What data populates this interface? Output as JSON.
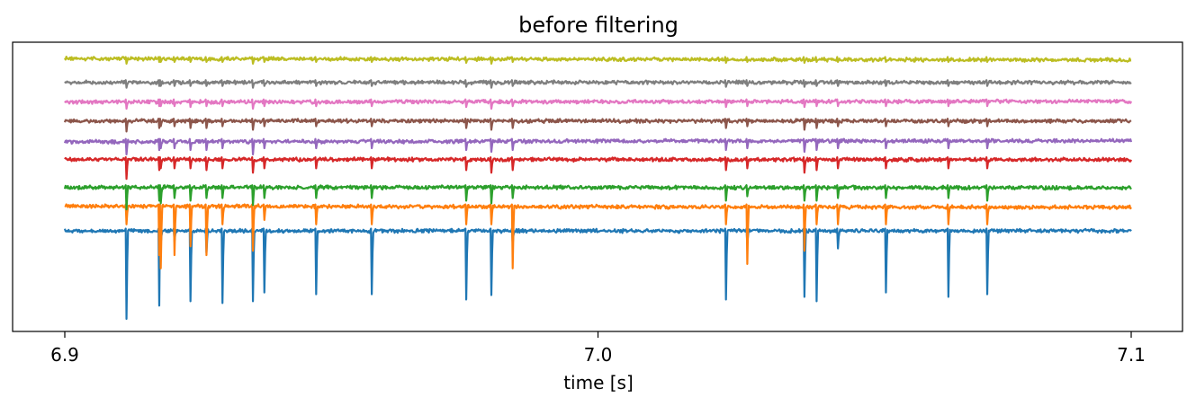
{
  "chart_data": {
    "type": "line",
    "title": "before filtering",
    "xlabel": "time [s]",
    "ylabel": "",
    "xlim": [
      6.9,
      7.1
    ],
    "xticks": [
      6.9,
      7.0,
      7.1
    ],
    "xtick_labels": [
      "6.9",
      "7.0",
      "7.1"
    ],
    "yticks_shown": false,
    "grid": false,
    "legend": "none",
    "spike_times": [
      6.9115,
      6.9175,
      6.9178,
      6.9205,
      6.9235,
      6.9265,
      6.9295,
      6.9352,
      6.9373,
      6.947,
      6.9575,
      6.9752,
      6.9798,
      6.9838,
      7.0238,
      7.0278,
      7.0385,
      7.0408,
      7.0448,
      7.0538,
      7.0655,
      7.0728
    ],
    "series": [
      {
        "color": "#1f77b4",
        "offset": 0.0,
        "spike_amplitudes": [
          -1.0,
          -0.85,
          -0.15,
          -0.12,
          -0.8,
          -0.25,
          -0.82,
          -0.8,
          -0.7,
          -0.72,
          -0.72,
          -0.78,
          -0.73,
          -0.15,
          -0.78,
          -0.15,
          -0.75,
          -0.8,
          -0.2,
          -0.7,
          -0.75,
          -0.72
        ]
      },
      {
        "color": "#ff7f0e",
        "offset": 0.25,
        "spike_amplitudes": [
          -0.2,
          -0.55,
          -0.7,
          -0.55,
          -0.45,
          -0.55,
          -0.2,
          -0.5,
          -0.15,
          -0.2,
          -0.2,
          -0.2,
          -0.2,
          -0.7,
          -0.2,
          -0.65,
          -0.5,
          -0.2,
          -0.2,
          -0.2,
          -0.2,
          -0.2
        ]
      },
      {
        "color": "#2ca02c",
        "offset": 0.45,
        "spike_amplitudes": [
          -0.25,
          -0.15,
          -0.18,
          -0.12,
          -0.15,
          -0.12,
          -0.12,
          -0.2,
          -0.12,
          -0.12,
          -0.12,
          -0.15,
          -0.18,
          -0.12,
          -0.15,
          -0.1,
          -0.15,
          -0.15,
          -0.12,
          -0.12,
          -0.12,
          -0.15
        ]
      },
      {
        "color": "#d62728",
        "offset": 0.74,
        "spike_amplitudes": [
          -0.22,
          -0.12,
          -0.1,
          -0.1,
          -0.1,
          -0.12,
          -0.1,
          -0.15,
          -0.1,
          -0.1,
          -0.1,
          -0.12,
          -0.15,
          -0.12,
          -0.12,
          -0.1,
          -0.15,
          -0.12,
          -0.1,
          -0.1,
          -0.1,
          -0.1
        ]
      },
      {
        "color": "#9467bd",
        "offset": 0.93,
        "spike_amplitudes": [
          -0.15,
          -0.1,
          -0.08,
          -0.08,
          -0.1,
          -0.1,
          -0.08,
          -0.15,
          -0.08,
          -0.08,
          -0.08,
          -0.1,
          -0.12,
          -0.1,
          -0.1,
          -0.08,
          -0.12,
          -0.1,
          -0.08,
          -0.08,
          -0.08,
          -0.08
        ]
      },
      {
        "color": "#8c564b",
        "offset": 1.14,
        "spike_amplitudes": [
          -0.12,
          -0.08,
          -0.06,
          -0.06,
          -0.08,
          -0.08,
          -0.06,
          -0.1,
          -0.06,
          -0.06,
          -0.06,
          -0.08,
          -0.1,
          -0.08,
          -0.08,
          -0.06,
          -0.1,
          -0.08,
          -0.06,
          -0.06,
          -0.06,
          -0.06
        ]
      },
      {
        "color": "#e377c2",
        "offset": 1.34,
        "spike_amplitudes": [
          -0.08,
          -0.05,
          -0.05,
          -0.05,
          -0.06,
          -0.05,
          -0.05,
          -0.08,
          -0.05,
          -0.05,
          -0.05,
          -0.06,
          -0.08,
          -0.05,
          -0.06,
          -0.05,
          -0.06,
          -0.05,
          -0.05,
          -0.05,
          -0.05,
          -0.05
        ]
      },
      {
        "color": "#7f7f7f",
        "offset": 1.54,
        "spike_amplitudes": [
          -0.06,
          -0.04,
          -0.04,
          -0.04,
          -0.04,
          -0.04,
          -0.04,
          -0.06,
          -0.04,
          -0.04,
          -0.04,
          -0.05,
          -0.06,
          -0.04,
          -0.05,
          -0.04,
          -0.05,
          -0.04,
          -0.04,
          -0.04,
          -0.04,
          -0.04
        ]
      },
      {
        "color": "#bcbd22",
        "offset": 1.78,
        "spike_amplitudes": [
          -0.05,
          -0.03,
          -0.03,
          -0.03,
          -0.03,
          -0.03,
          -0.03,
          -0.05,
          -0.03,
          -0.03,
          -0.03,
          -0.04,
          -0.05,
          -0.03,
          -0.04,
          -0.03,
          -0.04,
          -0.03,
          -0.03,
          -0.03,
          -0.03,
          -0.03
        ]
      }
    ],
    "ylim": [
      -1.05,
      1.88
    ]
  }
}
